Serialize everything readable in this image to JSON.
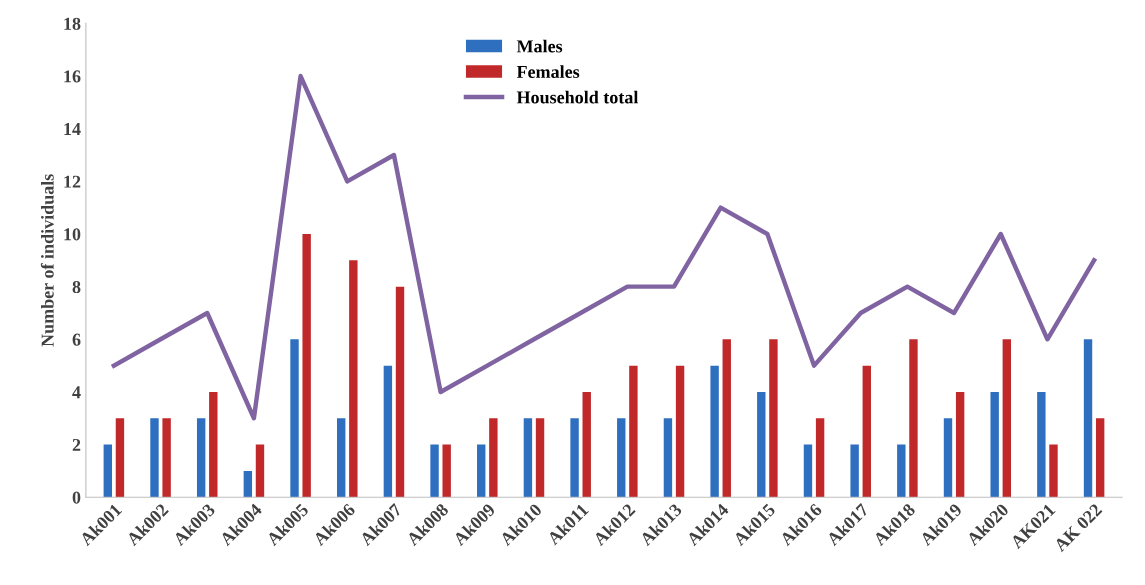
{
  "chart_data": {
    "type": "bar",
    "ylabel": "Number of individuals",
    "categories": [
      "Ak001",
      "Ak002",
      "Ak003",
      "Ak004",
      "Ak005",
      "Ak006",
      "Ak007",
      "Ak008",
      "Ak009",
      "Ak010",
      "Ak011",
      "Ak012",
      "Ak013",
      "Ak014",
      "Ak015",
      "Ak016",
      "Ak017",
      "Ak018",
      "Ak019",
      "Ak020",
      "AK021",
      "AK 022"
    ],
    "series": [
      {
        "name": "Males",
        "color": "#2e6fc0",
        "values": [
          2,
          3,
          3,
          1,
          6,
          3,
          5,
          2,
          2,
          3,
          3,
          3,
          3,
          5,
          4,
          2,
          2,
          2,
          3,
          4,
          4,
          6
        ]
      },
      {
        "name": "Females",
        "color": "#c0282a",
        "values": [
          3,
          3,
          4,
          2,
          10,
          9,
          8,
          2,
          3,
          3,
          4,
          5,
          5,
          6,
          6,
          3,
          5,
          6,
          4,
          6,
          2,
          3
        ]
      },
      {
        "name": "Household total",
        "type": "line",
        "color": "#8064a2",
        "values": [
          5,
          6,
          7,
          3,
          16,
          12,
          13,
          4,
          5,
          6,
          7,
          8,
          8,
          11,
          10,
          5,
          7,
          8,
          7,
          10,
          6,
          9
        ]
      }
    ],
    "ylim": [
      0,
      18
    ],
    "yticks": [
      0,
      2,
      4,
      6,
      8,
      10,
      12,
      14,
      16,
      18
    ],
    "grid": false,
    "legend": "top",
    "marker": "none",
    "line_style": "solid"
  }
}
